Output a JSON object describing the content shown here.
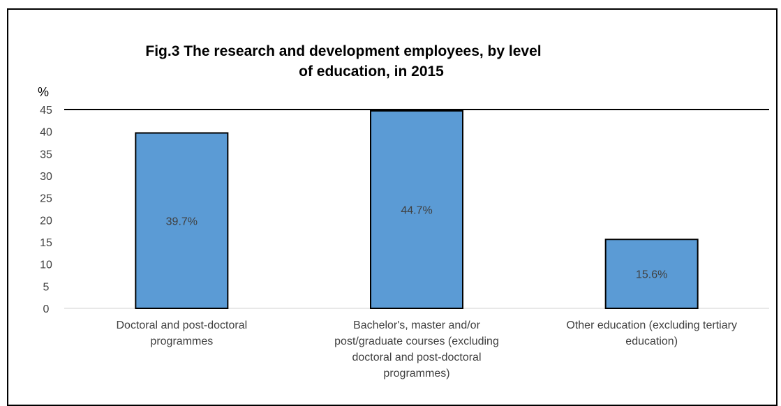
{
  "chart_data": {
    "type": "bar",
    "title_lines": [
      "Fig.3 The research and development employees, by level",
      "of education, in 2015"
    ],
    "ylabel": "%",
    "ylim": [
      0,
      45
    ],
    "yticks": [
      0,
      5,
      10,
      15,
      20,
      25,
      30,
      35,
      40,
      45
    ],
    "categories": [
      [
        "Doctoral and post-doctoral",
        "programmes"
      ],
      [
        "Bachelor's, master and/or",
        "post/graduate courses (excluding",
        "doctoral and post-doctoral",
        "programmes)"
      ],
      [
        "Other education (excluding tertiary",
        "education)"
      ]
    ],
    "values": [
      39.7,
      44.7,
      15.6
    ],
    "data_labels": [
      "39.7%",
      "44.7%",
      "15.6%"
    ],
    "bar_color": "#5b9bd5",
    "bar_border_color": "#000000",
    "grid": false,
    "legend": "none"
  }
}
